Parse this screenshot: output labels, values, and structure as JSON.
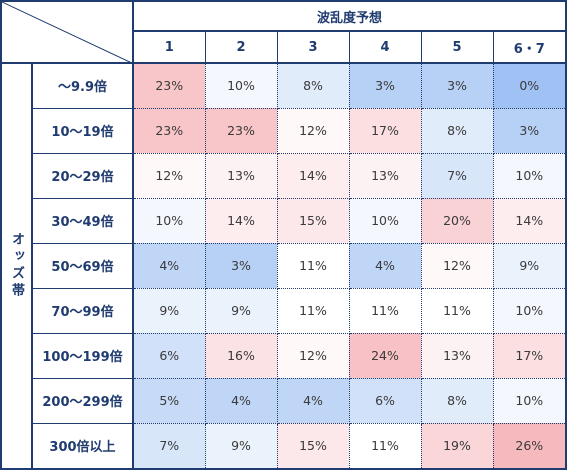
{
  "header": {
    "column_group": "波乱度予想",
    "row_group": "オッズ帯"
  },
  "colors": {
    "border": "#1f3b6f",
    "low": "#9fc1f3",
    "mid": "#ffffff",
    "high": "#f6b9be"
  },
  "chart_data": {
    "type": "heatmap",
    "title": "",
    "x_label": "波乱度予想",
    "y_label": "オッズ帯",
    "columns": [
      "1",
      "2",
      "3",
      "4",
      "5",
      "6・7"
    ],
    "rows": [
      "～9.9倍",
      "10～19倍",
      "20～29倍",
      "30～49倍",
      "50～69倍",
      "70～99倍",
      "100～199倍",
      "200～299倍",
      "300倍以上"
    ],
    "values": [
      [
        "23%",
        "10%",
        "8%",
        "3%",
        "3%",
        "0%"
      ],
      [
        "23%",
        "23%",
        "12%",
        "17%",
        "8%",
        "3%"
      ],
      [
        "12%",
        "13%",
        "14%",
        "13%",
        "7%",
        "10%"
      ],
      [
        "10%",
        "14%",
        "15%",
        "10%",
        "20%",
        "14%"
      ],
      [
        "4%",
        "3%",
        "11%",
        "4%",
        "12%",
        "9%"
      ],
      [
        "9%",
        "9%",
        "11%",
        "11%",
        "11%",
        "10%"
      ],
      [
        "6%",
        "16%",
        "12%",
        "24%",
        "13%",
        "17%"
      ],
      [
        "5%",
        "4%",
        "4%",
        "6%",
        "8%",
        "10%"
      ],
      [
        "7%",
        "9%",
        "15%",
        "11%",
        "19%",
        "26%"
      ]
    ]
  }
}
